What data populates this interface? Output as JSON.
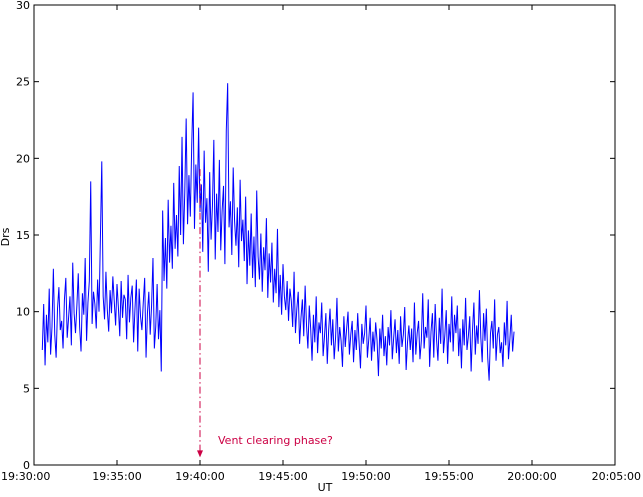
{
  "chart_data": {
    "type": "line",
    "xlabel": "UT",
    "ylabel": "Drs",
    "ylim": [
      0,
      30
    ],
    "xlim": [
      "19:30:00",
      "20:05:00"
    ],
    "yticks": [
      0,
      5,
      10,
      15,
      20,
      25,
      30
    ],
    "xticks": [
      "19:30:00",
      "19:35:00",
      "19:40:00",
      "19:45:00",
      "19:50:00",
      "19:55:00",
      "20:00:00",
      "20:05:00"
    ],
    "grid": false,
    "colors": {
      "series": "#0000ff",
      "marker": "#cc0044",
      "axes": "#000000"
    },
    "annotation": {
      "text": "Vent clearing phase?",
      "time": "19:40:00",
      "y": 0.8
    },
    "marker_line": {
      "time": "19:40:00",
      "y_from": 19.3,
      "y_to": 0.5
    },
    "sample_interval_s": 5,
    "start_time": "19:30:30",
    "series": [
      {
        "values": [
          7.5,
          10.5,
          6.5,
          9.8,
          8.0,
          11.5,
          7.2,
          9.0,
          12.8,
          8.5,
          7.0,
          10.2,
          11.6,
          8.8,
          9.4,
          7.6,
          10.8,
          12.2,
          8.3,
          9.6,
          11.0,
          7.8,
          13.2,
          9.9,
          8.6,
          10.4,
          12.5,
          9.0,
          7.4,
          11.2,
          9.8,
          13.5,
          8.1,
          10.6,
          12.0,
          18.5,
          9.2,
          11.3,
          10.5,
          8.9,
          12.1,
          10.0,
          14.8,
          19.8,
          11.0,
          9.5,
          12.6,
          10.1,
          8.7,
          11.4,
          9.9,
          12.3,
          10.7,
          9.1,
          11.8,
          10.3,
          8.4,
          12.0,
          9.6,
          11.1,
          10.8,
          8.2,
          12.4,
          9.3,
          10.9,
          11.7,
          8.0,
          10.2,
          12.1,
          7.4,
          11.5,
          9.7,
          8.8,
          10.6,
          12.2,
          7.0,
          9.9,
          11.3,
          8.5,
          10.4,
          13.5,
          7.6,
          9.0,
          11.8,
          8.2,
          10.1,
          6.1,
          16.6,
          12.0,
          14.8,
          11.5,
          17.3,
          13.2,
          15.6,
          12.8,
          18.4,
          14.1,
          16.3,
          13.6,
          19.5,
          15.0,
          21.4,
          14.4,
          17.8,
          22.6,
          15.7,
          18.9,
          16.2,
          20.8,
          24.3,
          15.4,
          19.6,
          17.1,
          22.0,
          16.5,
          18.3,
          13.9,
          20.5,
          15.8,
          17.4,
          12.6,
          19.1,
          14.7,
          16.9,
          21.2,
          13.4,
          17.7,
          15.2,
          19.9,
          14.0,
          16.6,
          18.2,
          13.1,
          21.8,
          24.9,
          15.5,
          17.2,
          13.7,
          19.4,
          15.9,
          14.3,
          16.8,
          12.9,
          18.6,
          14.6,
          16.0,
          13.3,
          17.5,
          11.8,
          15.3,
          13.0,
          16.4,
          12.2,
          14.9,
          11.6,
          17.9,
          13.6,
          12.1,
          15.1,
          11.3,
          14.2,
          12.7,
          16.1,
          10.9,
          13.8,
          11.9,
          14.5,
          10.6,
          12.8,
          11.2,
          15.4,
          10.3,
          12.4,
          9.8,
          13.1,
          11.0,
          10.1,
          12.0,
          9.4,
          11.5,
          10.7,
          9.0,
          12.6,
          8.6,
          10.2,
          11.3,
          7.9,
          9.6,
          10.8,
          8.4,
          11.7,
          9.1,
          7.6,
          10.4,
          8.9,
          6.8,
          9.8,
          8.0,
          11.0,
          7.3,
          9.3,
          8.6,
          10.6,
          7.1,
          8.4,
          9.9,
          6.6,
          8.8,
          10.2,
          7.8,
          9.5,
          6.9,
          8.3,
          10.9,
          7.4,
          9.0,
          8.1,
          6.4,
          9.7,
          7.7,
          8.9,
          10.0,
          7.2,
          8.5,
          9.4,
          6.7,
          8.8,
          7.5,
          9.9,
          8.0,
          6.3,
          9.2,
          7.9,
          8.6,
          10.4,
          7.0,
          8.2,
          9.6,
          6.8,
          8.7,
          7.4,
          9.3,
          8.1,
          5.8,
          8.9,
          7.6,
          9.8,
          7.1,
          8.4,
          6.5,
          9.0,
          7.8,
          10.1,
          6.9,
          8.3,
          9.5,
          7.3,
          8.8,
          6.6,
          9.7,
          7.7,
          8.5,
          10.3,
          6.2,
          8.0,
          9.1,
          7.5,
          8.9,
          6.7,
          10.6,
          7.2,
          8.6,
          9.4,
          6.9,
          8.1,
          11.2,
          7.6,
          9.0,
          8.3,
          10.8,
          6.4,
          8.7,
          9.9,
          7.0,
          10.5,
          8.2,
          6.8,
          9.6,
          7.9,
          11.5,
          7.3,
          8.5,
          10.1,
          6.6,
          9.2,
          8.0,
          11.0,
          7.4,
          9.8,
          8.6,
          10.4,
          7.1,
          8.9,
          6.3,
          9.5,
          7.8,
          10.9,
          7.5,
          8.4,
          9.7,
          6.1,
          8.8,
          10.6,
          7.2,
          9.1,
          7.9,
          11.4,
          8.3,
          6.7,
          9.9,
          8.1,
          10.2,
          7.0,
          5.5,
          8.6,
          9.4,
          7.6,
          10.8,
          6.8,
          8.5,
          9.0,
          7.3,
          8.0,
          6.4,
          9.3,
          7.8,
          10.7,
          6.9,
          8.2,
          9.8,
          7.4,
          8.7
        ]
      }
    ]
  }
}
